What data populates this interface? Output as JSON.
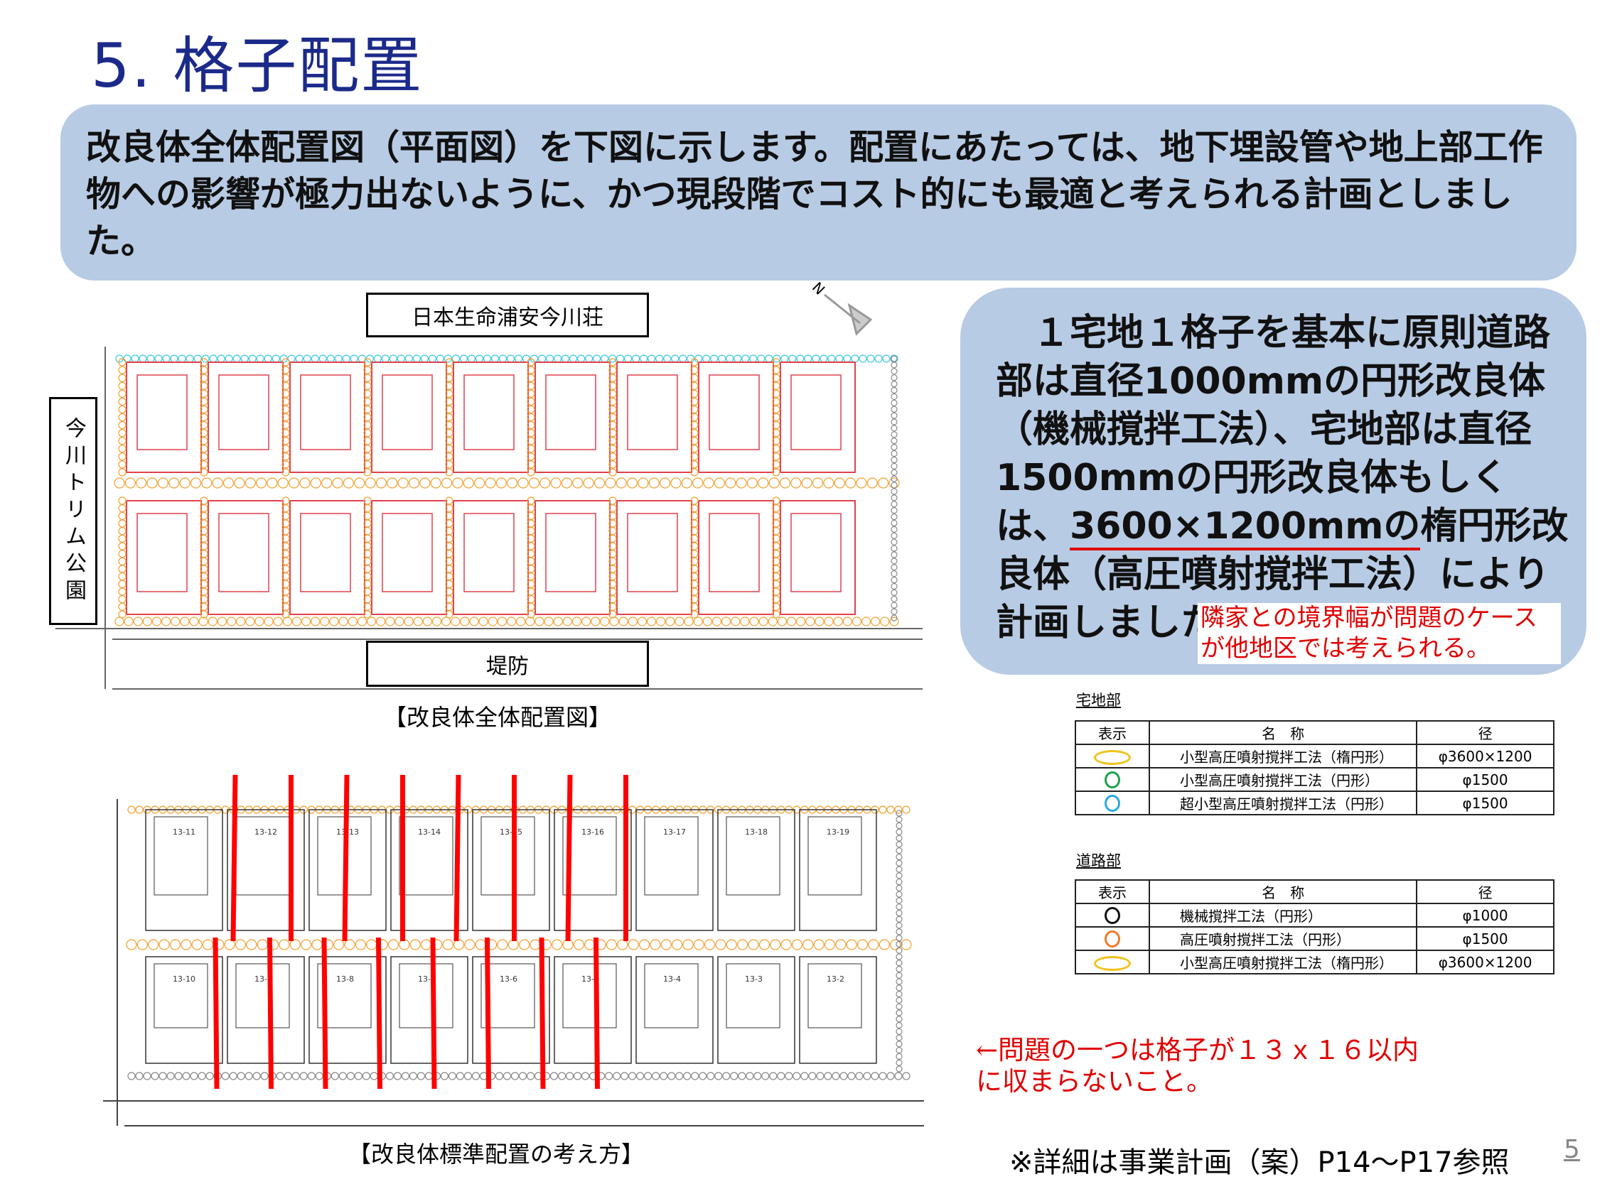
{
  "title": "5. 格子配置",
  "intro_text": "改良体全体配置図（平面図）を下図に示します。配置にあたっては、地下埋設管や地上部工作物への影響が極力出ないように、かつ現段階でコスト的にも最適と考えられる計画としました。",
  "map1": {
    "top_label": "日本生命浦安今川荘",
    "left_label": "今川トリム公園",
    "bottom_label": "堤防",
    "north_mark": "N",
    "caption": "【改良体全体配置図】"
  },
  "map2": {
    "caption": "【改良体標準配置の考え方】",
    "lots_top": [
      "13-11",
      "13-12",
      "13-13",
      "13-14",
      "13-15",
      "13-16",
      "13-17",
      "13-18",
      "13-19"
    ],
    "lots_bottom": [
      "13-10",
      "13-9",
      "13-8",
      "13-7",
      "13-6",
      "13-5",
      "13-4",
      "13-3",
      "13-2"
    ]
  },
  "bubble": {
    "text_before": "　１宅地１格子を基本に原則道路部は直径1000mmの円形改良体（機械撹拌工法）、宅地部は直径1500mmの円形改良体もしくは、",
    "text_underlined": "3600×1200mmの",
    "text_after": "楕円形改良体（高圧噴射撹拌工法）により計画しました。"
  },
  "red_note": "隣家との境界幅が問題のケースが他地区では考えられる。",
  "legend_residential": {
    "label": "宅地部",
    "headers": [
      "表示",
      "名　称",
      "径"
    ],
    "rows": [
      {
        "symbol": "ellipse",
        "color": "#f2c21b",
        "name": "小型高圧噴射撹拌工法（楕円形）",
        "diameter": "φ3600×1200"
      },
      {
        "symbol": "circle",
        "color": "#1aa34a",
        "name": "小型高圧噴射撹拌工法（円形）",
        "diameter": "φ1500"
      },
      {
        "symbol": "circle",
        "color": "#29a9e0",
        "name": "超小型高圧噴射撹拌工法（円形）",
        "diameter": "φ1500"
      }
    ]
  },
  "legend_road": {
    "label": "道路部",
    "headers": [
      "表示",
      "名　称",
      "径"
    ],
    "rows": [
      {
        "symbol": "circle",
        "color": "#111111",
        "name": "機械撹拌工法（円形）",
        "diameter": "φ1000"
      },
      {
        "symbol": "circle",
        "color": "#ee7a2a",
        "name": "高圧噴射撹拌工法（円形）",
        "diameter": "φ1500"
      },
      {
        "symbol": "ellipse",
        "color": "#f2c21b",
        "name": "小型高圧噴射撹拌工法（楕円形）",
        "diameter": "φ3600×1200"
      }
    ]
  },
  "problem_note": {
    "line1": "←問題の一つは格子が１３ｘ１６以内",
    "line2": "に収まらないこと。"
  },
  "footer": "※詳細は事業計画（案）P14～P17参照",
  "page_number": "5",
  "colors": {
    "title": "#1b2a8a",
    "box_fill": "#b8cbe4",
    "red": "#e00000",
    "lot_outline": "#e0404f",
    "column_dots": "#f0a030"
  }
}
